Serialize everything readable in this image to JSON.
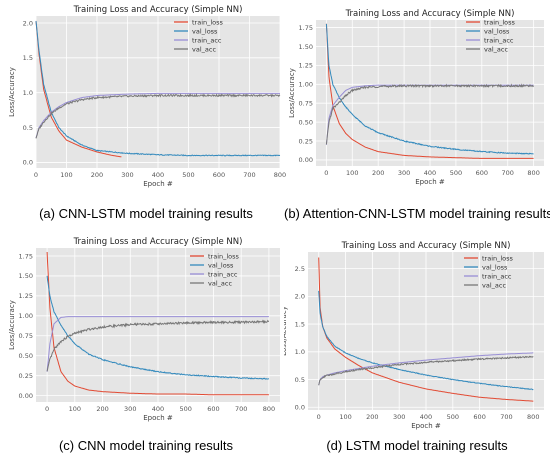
{
  "captions": [
    "(a) CNN-LSTM model training results",
    "(b) Attention-CNN-LSTM model training results",
    "(c) CNN model training results",
    "(d)  LSTM model training results"
  ],
  "chart_data": [
    {
      "type": "line",
      "title": "Training Loss and Accuracy (Simple NN)",
      "xlabel": "Epoch #",
      "ylabel": "Loss/Accuracy",
      "xlim": [
        0,
        800
      ],
      "ylim": [
        -0.08,
        2.1
      ],
      "xticks": [
        0,
        100,
        200,
        300,
        400,
        500,
        600,
        700,
        800
      ],
      "yticks": [
        0.0,
        0.5,
        1.0,
        1.5,
        2.0
      ],
      "ytick_labels": [
        "0.0",
        "0.5",
        "1.0",
        "1.5",
        "2.0"
      ],
      "grid": true,
      "legend_position": "top-right",
      "series": [
        {
          "name": "train_loss",
          "color": "#e24a33",
          "x": [
            0,
            10,
            25,
            50,
            75,
            100,
            150,
            200,
            250,
            280
          ],
          "y": [
            2.03,
            1.55,
            1.05,
            0.65,
            0.45,
            0.32,
            0.22,
            0.15,
            0.1,
            0.08
          ]
        },
        {
          "name": "val_loss",
          "color": "#348abd",
          "x": [
            0,
            10,
            25,
            50,
            75,
            100,
            150,
            200,
            300,
            400,
            500,
            600,
            700,
            800
          ],
          "y": [
            2.03,
            1.6,
            1.12,
            0.72,
            0.5,
            0.38,
            0.25,
            0.17,
            0.13,
            0.11,
            0.1,
            0.1,
            0.1,
            0.1
          ]
        },
        {
          "name": "train_acc",
          "color": "#988ed5",
          "x": [
            0,
            10,
            25,
            50,
            75,
            100,
            150,
            200,
            300,
            400,
            500,
            600,
            700,
            800
          ],
          "y": [
            0.35,
            0.5,
            0.6,
            0.72,
            0.8,
            0.86,
            0.93,
            0.96,
            0.98,
            0.99,
            0.99,
            0.99,
            0.99,
            0.99
          ]
        },
        {
          "name": "val_acc",
          "color": "#777777",
          "x": [
            0,
            10,
            25,
            50,
            75,
            100,
            150,
            200,
            300,
            400,
            500,
            600,
            700,
            800
          ],
          "y": [
            0.35,
            0.48,
            0.58,
            0.7,
            0.78,
            0.84,
            0.9,
            0.93,
            0.95,
            0.96,
            0.96,
            0.96,
            0.96,
            0.96
          ]
        }
      ]
    },
    {
      "type": "line",
      "title": "Training Loss and Accuracy (Simple NN)",
      "xlabel": "Epoch #",
      "ylabel": "Loss/Accuracy",
      "xlim": [
        -40,
        840
      ],
      "ylim": [
        -0.08,
        1.85
      ],
      "xticks": [
        0,
        100,
        200,
        300,
        400,
        500,
        600,
        700,
        800
      ],
      "yticks": [
        0.0,
        0.25,
        0.5,
        0.75,
        1.0,
        1.25,
        1.5,
        1.75
      ],
      "ytick_labels": [
        "0.00",
        "0.25",
        "0.50",
        "0.75",
        "1.00",
        "1.25",
        "1.50",
        "1.75"
      ],
      "grid": true,
      "legend_position": "top-right",
      "series": [
        {
          "name": "train_loss",
          "color": "#e24a33",
          "x": [
            0,
            10,
            25,
            50,
            75,
            100,
            150,
            200,
            300,
            400,
            500,
            600,
            700,
            800
          ],
          "y": [
            1.8,
            1.1,
            0.72,
            0.48,
            0.35,
            0.27,
            0.17,
            0.11,
            0.06,
            0.04,
            0.03,
            0.02,
            0.02,
            0.02
          ]
        },
        {
          "name": "val_loss",
          "color": "#348abd",
          "x": [
            0,
            10,
            25,
            50,
            75,
            100,
            150,
            200,
            300,
            400,
            500,
            600,
            700,
            800
          ],
          "y": [
            1.8,
            1.25,
            1.0,
            0.82,
            0.7,
            0.6,
            0.45,
            0.36,
            0.25,
            0.18,
            0.14,
            0.11,
            0.09,
            0.08
          ]
        },
        {
          "name": "train_acc",
          "color": "#988ed5",
          "x": [
            0,
            10,
            25,
            50,
            75,
            100,
            150,
            200,
            300,
            400,
            500,
            600,
            700,
            800
          ],
          "y": [
            0.2,
            0.55,
            0.72,
            0.83,
            0.92,
            0.96,
            0.98,
            0.99,
            0.99,
            0.99,
            0.99,
            0.99,
            0.99,
            0.99
          ]
        },
        {
          "name": "val_acc",
          "color": "#777777",
          "x": [
            0,
            10,
            25,
            50,
            75,
            100,
            150,
            200,
            300,
            400,
            500,
            600,
            700,
            800
          ],
          "y": [
            0.2,
            0.5,
            0.68,
            0.76,
            0.85,
            0.92,
            0.96,
            0.97,
            0.98,
            0.98,
            0.98,
            0.98,
            0.98,
            0.98
          ]
        }
      ]
    },
    {
      "type": "line",
      "title": "Training Loss and Accuracy (Simple NN)",
      "xlabel": "Epoch #",
      "ylabel": "Loss/Accuracy",
      "xlim": [
        -40,
        840
      ],
      "ylim": [
        -0.08,
        1.85
      ],
      "xticks": [
        0,
        100,
        200,
        300,
        400,
        500,
        600,
        700,
        800
      ],
      "yticks": [
        0.0,
        0.25,
        0.5,
        0.75,
        1.0,
        1.25,
        1.5,
        1.75
      ],
      "ytick_labels": [
        "0.00",
        "0.25",
        "0.50",
        "0.75",
        "1.00",
        "1.25",
        "1.50",
        "1.75"
      ],
      "grid": true,
      "legend_position": "top-right",
      "series": [
        {
          "name": "train_loss",
          "color": "#e24a33",
          "x": [
            0,
            10,
            25,
            50,
            75,
            100,
            150,
            200,
            300,
            400,
            500,
            600,
            700,
            800
          ],
          "y": [
            1.8,
            1.1,
            0.6,
            0.3,
            0.18,
            0.12,
            0.07,
            0.05,
            0.03,
            0.02,
            0.02,
            0.01,
            0.01,
            0.01
          ]
        },
        {
          "name": "val_loss",
          "color": "#348abd",
          "x": [
            0,
            10,
            25,
            50,
            75,
            100,
            150,
            200,
            300,
            400,
            500,
            600,
            700,
            800
          ],
          "y": [
            1.5,
            1.25,
            1.05,
            0.88,
            0.75,
            0.65,
            0.52,
            0.45,
            0.36,
            0.3,
            0.26,
            0.24,
            0.22,
            0.21
          ]
        },
        {
          "name": "train_acc",
          "color": "#988ed5",
          "x": [
            0,
            10,
            25,
            50,
            75,
            100,
            150,
            200,
            300,
            400,
            500,
            600,
            700,
            800
          ],
          "y": [
            0.3,
            0.65,
            0.9,
            0.98,
            0.99,
            0.99,
            0.99,
            0.99,
            0.99,
            0.99,
            0.99,
            0.99,
            0.99,
            0.99
          ]
        },
        {
          "name": "val_acc",
          "color": "#777777",
          "x": [
            0,
            10,
            25,
            50,
            75,
            100,
            150,
            200,
            300,
            400,
            500,
            600,
            700,
            800
          ],
          "y": [
            0.3,
            0.45,
            0.58,
            0.68,
            0.74,
            0.78,
            0.83,
            0.86,
            0.89,
            0.9,
            0.91,
            0.92,
            0.92,
            0.93
          ]
        }
      ]
    },
    {
      "type": "line",
      "title": "Training Loss and Accuracy (Simple NN)",
      "xlabel": "Epoch #",
      "ylabel": "Loss/Accuracy",
      "xlim": [
        -40,
        840
      ],
      "ylim": [
        -0.05,
        2.8
      ],
      "xticks": [
        0,
        100,
        200,
        300,
        400,
        500,
        600,
        700,
        800
      ],
      "yticks": [
        0.0,
        0.5,
        1.0,
        1.5,
        2.0,
        2.5
      ],
      "ytick_labels": [
        "0.0",
        "0.5",
        "1.0",
        "1.5",
        "2.0",
        "2.5"
      ],
      "grid": true,
      "legend_position": "top-right",
      "series": [
        {
          "name": "train_loss",
          "color": "#e24a33",
          "x": [
            0,
            5,
            15,
            30,
            60,
            100,
            150,
            200,
            300,
            400,
            500,
            600,
            700,
            800
          ],
          "y": [
            2.7,
            1.8,
            1.45,
            1.25,
            1.05,
            0.9,
            0.75,
            0.62,
            0.45,
            0.33,
            0.25,
            0.18,
            0.14,
            0.11
          ]
        },
        {
          "name": "val_loss",
          "color": "#348abd",
          "x": [
            0,
            5,
            15,
            30,
            60,
            100,
            150,
            200,
            300,
            400,
            500,
            600,
            700,
            800
          ],
          "y": [
            2.1,
            1.7,
            1.45,
            1.28,
            1.1,
            0.98,
            0.88,
            0.8,
            0.68,
            0.58,
            0.5,
            0.43,
            0.37,
            0.32
          ]
        },
        {
          "name": "train_acc",
          "color": "#988ed5",
          "x": [
            0,
            5,
            15,
            30,
            60,
            100,
            150,
            200,
            300,
            400,
            500,
            600,
            700,
            800
          ],
          "y": [
            0.4,
            0.5,
            0.55,
            0.58,
            0.62,
            0.66,
            0.7,
            0.74,
            0.8,
            0.85,
            0.89,
            0.93,
            0.96,
            0.98
          ]
        },
        {
          "name": "val_acc",
          "color": "#777777",
          "x": [
            0,
            5,
            15,
            30,
            60,
            100,
            150,
            200,
            300,
            400,
            500,
            600,
            700,
            800
          ],
          "y": [
            0.4,
            0.5,
            0.54,
            0.57,
            0.6,
            0.64,
            0.68,
            0.71,
            0.77,
            0.81,
            0.84,
            0.87,
            0.89,
            0.91
          ]
        }
      ]
    }
  ]
}
